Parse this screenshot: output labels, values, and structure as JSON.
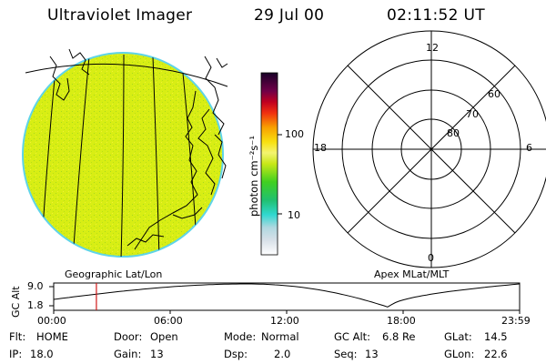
{
  "header": {
    "title": "Ultraviolet Imager",
    "date": "29 Jul 00",
    "time": "02:11:52 UT"
  },
  "colorbar": {
    "unit_label": "photon cm⁻²s⁻¹",
    "ticks": [
      "100",
      "10"
    ],
    "scale": "log"
  },
  "polar_plot": {
    "mlt_labels": {
      "top": "12",
      "left": "18",
      "right": "6",
      "bottom": "0"
    },
    "lat_labels": [
      "60",
      "70",
      "80"
    ]
  },
  "panel_labels": {
    "geographic": "Geographic Lat/Lon",
    "apex": "Apex MLat/MLT"
  },
  "altitude_strip": {
    "axis_label": "GC Alt",
    "y_ticks": [
      "9.0",
      "1.8"
    ],
    "x_ticks": [
      "00:00",
      "06:00",
      "12:00",
      "18:00",
      "23:59"
    ],
    "current_time_marker_hours": 2.2
  },
  "info": {
    "row1": [
      {
        "label": "Flt:",
        "value": "HOME"
      },
      {
        "label": "Door:",
        "value": "Open"
      },
      {
        "label": "Mode:",
        "value": "Normal"
      },
      {
        "label": "GC Alt:",
        "value": "6.8 Re"
      },
      {
        "label": "GLat:",
        "value": "14.5"
      }
    ],
    "row2": [
      {
        "label": "IP:",
        "value": "18.0"
      },
      {
        "label": "Gain:",
        "value": "13"
      },
      {
        "label": "Dsp:",
        "value": "2.0"
      },
      {
        "label": "Seq:",
        "value": "13"
      },
      {
        "label": "GLon:",
        "value": "22.6"
      }
    ]
  },
  "colors": {
    "earth_fill": "#d8ee14",
    "earth_edge": "#5fd4e8",
    "marker": "#d01818"
  }
}
